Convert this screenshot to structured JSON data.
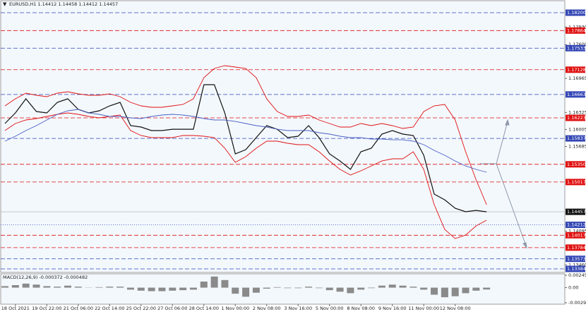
{
  "chart_data": [
    {
      "type": "line",
      "title": "EURUSD,H1  1.14412 1.14458 1.14412 1.14457",
      "categories": [
        null,
        "18 Oct 2021",
        null,
        null,
        "19 Oct 22:00",
        null,
        null,
        "21 Oct 06:00",
        null,
        null,
        "22 Oct 14:00",
        null,
        null,
        "25 Oct 22:00",
        null,
        null,
        "27 Oct 06:00",
        null,
        null,
        "28 Oct 14:00",
        null,
        null,
        "1 Nov 00:00",
        null,
        null,
        "2 Nov 08:00",
        null,
        null,
        "3 Nov 16:00",
        null,
        null,
        "5 Nov 00:00",
        null,
        null,
        "8 Nov 08:00",
        null,
        null,
        "9 Nov 16:00",
        null,
        null,
        "11 Nov 00:00",
        null,
        null,
        "12 Nov 08:00",
        null,
        null,
        null
      ],
      "series": [
        {
          "color": "#111111",
          "values": [
            1.16117,
            1.16316,
            1.16581,
            1.16342,
            1.16316,
            1.16515,
            1.16581,
            1.16382,
            1.16316,
            1.16356,
            1.16448,
            1.16515,
            1.16077,
            1.1605,
            1.15984,
            1.15984,
            1.1601,
            1.1601,
            1.1601,
            1.16846,
            1.16846,
            1.16316,
            1.15546,
            1.15626,
            1.15851,
            1.16077,
            1.1601,
            1.15851,
            1.15878,
            1.16077,
            1.15851,
            1.15546,
            1.15413,
            1.15254,
            1.15586,
            1.15652,
            1.15918,
            1.15984,
            1.15918,
            1.15891,
            1.1552,
            1.1479,
            1.14683,
            1.14524,
            1.14458,
            1.14484,
            1.14457
          ]
        },
        {
          "color": "#e01010",
          "values": [
            1.16448,
            1.16581,
            1.16687,
            1.16647,
            1.16621,
            1.16687,
            1.16714,
            1.16674,
            1.16647,
            1.16647,
            1.16674,
            1.16621,
            1.16515,
            1.16448,
            1.16422,
            1.16422,
            1.16448,
            1.16475,
            1.16581,
            1.16979,
            1.17152,
            1.17205,
            1.17178,
            1.17152,
            1.16979,
            1.16581,
            1.16342,
            1.16249,
            1.16249,
            1.16276,
            1.16183,
            1.16117,
            1.1605,
            1.1605,
            1.16117,
            1.16077,
            1.16117,
            1.16077,
            1.16024,
            1.1605,
            1.16342,
            1.16448,
            1.16475,
            1.16183,
            1.15586,
            1.15055,
            1.14591
          ]
        },
        {
          "color": "#e01010",
          "values": [
            1.15984,
            1.16117,
            1.16183,
            1.1621,
            1.16249,
            1.16289,
            1.16316,
            1.16289,
            1.16249,
            1.16223,
            1.16249,
            1.16276,
            1.15984,
            1.15891,
            1.15851,
            1.15851,
            1.15851,
            1.15891,
            1.15891,
            1.15878,
            1.15851,
            1.15652,
            1.15387,
            1.15493,
            1.15652,
            1.15785,
            1.15785,
            1.15745,
            1.15719,
            1.15719,
            1.15586,
            1.15413,
            1.15254,
            1.15148,
            1.15228,
            1.1532,
            1.15413,
            1.15453,
            1.15453,
            1.15586,
            1.15254,
            1.14591,
            1.14126,
            1.13954,
            1.1402,
            1.14193,
            1.14299
          ]
        },
        {
          "color": "#4a5fc1",
          "values": [
            1.15785,
            1.15878,
            1.15984,
            1.16077,
            1.16183,
            1.16289,
            1.16356,
            1.16382,
            1.16316,
            1.16289,
            1.16249,
            1.16249,
            1.16223,
            1.1621,
            1.16249,
            1.16276,
            1.16289,
            1.16276,
            1.16249,
            1.1621,
            1.16183,
            1.16183,
            1.16156,
            1.16117,
            1.16077,
            1.1605,
            1.1601,
            1.15984,
            1.15984,
            1.15984,
            1.15944,
            1.15918,
            1.15878,
            1.15851,
            1.15851,
            1.15825,
            1.15825,
            1.15811,
            1.15811,
            1.15785,
            1.15719,
            1.15612,
            1.1552,
            1.15413,
            1.1532,
            1.15254,
            1.15201
          ]
        }
      ],
      "ylim": [
        1.13331,
        1.18412
      ],
      "yticks": [
        {
          "value": 1.1793,
          "label": "1.17930"
        },
        {
          "value": 1.176,
          "label": "1.17600"
        },
        1.16965,
        1.16325,
        1.16005,
        1.15685,
        1.14095,
        {
          "value": 1.1346,
          "label": "1.13460"
        }
      ],
      "levels": [
        {
          "value": 1.182,
          "label": "1.18200",
          "color": "#3346b5"
        },
        {
          "value": 1.17864,
          "label": "1.17864",
          "color": "#e01010"
        },
        {
          "value": 1.17533,
          "label": "1.17533",
          "color": "#3346b5"
        },
        {
          "value": 1.17128,
          "label": "1.17128",
          "color": "#e01010"
        },
        {
          "value": 1.16663,
          "label": "1.16663",
          "color": "#3346b5"
        },
        {
          "value": 1.16223,
          "label": "1.16223",
          "color": "#e01010"
        },
        {
          "value": 1.15837,
          "label": "1.15837",
          "color": "#3346b5"
        },
        {
          "value": 1.1535,
          "label": "1.15350",
          "color": "#e01010"
        },
        {
          "value": 1.15017,
          "label": "1.15017",
          "color": "#e01010"
        },
        {
          "value": 1.14212,
          "label": "1.14212",
          "color": "#3346b5"
        },
        {
          "value": 1.14017,
          "label": "1.14017",
          "color": "#e01010"
        },
        {
          "value": 1.13784,
          "label": "1.13784",
          "color": "#e01010"
        },
        {
          "value": 1.13573,
          "label": "1.13573",
          "color": "#3346b5"
        },
        {
          "value": 1.13384,
          "label": "1.13384",
          "color": "#3346b5"
        }
      ],
      "current_price": {
        "value": 1.14457,
        "label": "1.14457"
      }
    },
    {
      "type": "bar",
      "title": "MACD(12,26,9) -0.000372 -0.000482",
      "color": "#8a8a8a",
      "values": [
        0.0003,
        0.0005,
        0.0008,
        0.0006,
        0.0003,
        0.0002,
        0.0004,
        0.0002,
        0,
        0.0001,
        0.0002,
        0.0002,
        -0.0004,
        -0.0006,
        -0.0007,
        -0.0007,
        -0.0006,
        -0.0005,
        -0.0004,
        0.0012,
        0.0022,
        0.0015,
        -0.0012,
        -0.0018,
        -0.001,
        -0.0002,
        0.0001,
        -0.0001,
        -0.0001,
        0.0002,
        -0.0001,
        -0.0005,
        -0.0008,
        -0.0011,
        -0.0004,
        -0.0001,
        0.0004,
        0.0006,
        0.0004,
        0.0002,
        -0.0004,
        -0.0014,
        -0.0019,
        -0.0017,
        -0.0011,
        -0.0006,
        -0.000372
      ],
      "ylim": [
        -0.002997,
        0.002455
      ],
      "yticks": [
        0.002455,
        {
          "value": 0,
          "label": "0.00"
        },
        -0.002997
      ]
    }
  ]
}
